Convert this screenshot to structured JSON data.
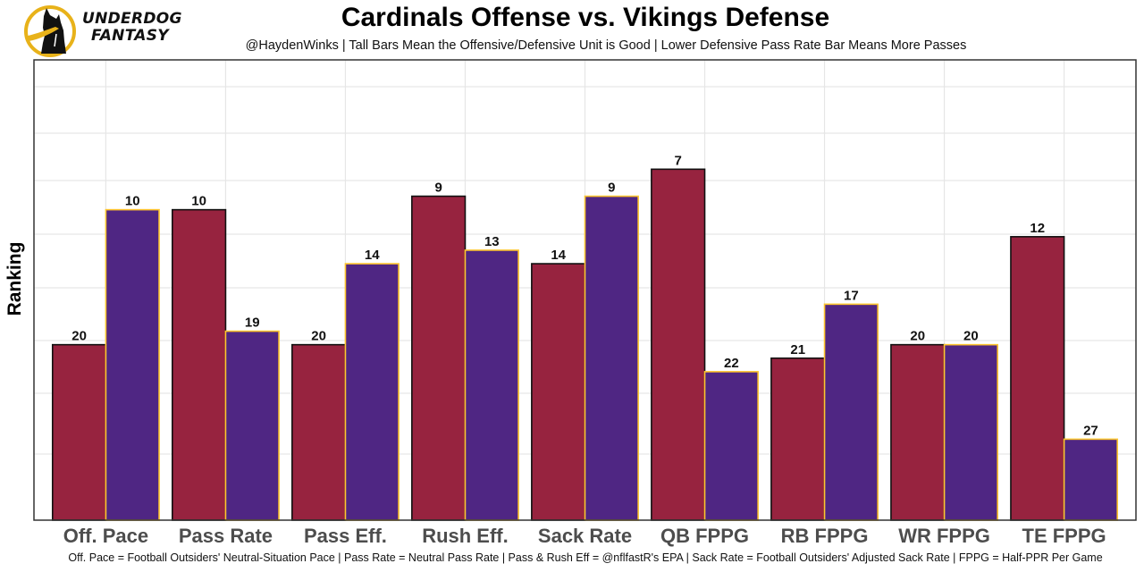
{
  "logo": {
    "line1": "UNDERDOG",
    "line2": "FANTASY",
    "icon": "underdog-dog-logo-icon"
  },
  "header": {
    "title": "Cardinals Offense vs. Vikings Defense",
    "subtitle": "@HaydenWinks | Tall Bars Mean the Offensive/Defensive Unit is Good | Lower Defensive Pass Rate Bar Means More Passes"
  },
  "footer": {
    "caption": "Off. Pace = Football Outsiders' Neutral-Situation Pace | Pass Rate = Neutral Pass Rate | Pass & Rush Eff = @nflfastR's EPA | Sack Rate = Football Outsiders' Adjusted Sack Rate | FPPG = Half-PPR Per Game"
  },
  "chart_data": {
    "type": "bar",
    "title": "Cardinals Offense vs. Vikings Defense",
    "subtitle": "@HaydenWinks | Tall Bars Mean the Offensive/Defensive Unit is Good | Lower Defensive Pass Rate Bar Means More Passes",
    "xlabel": "",
    "ylabel": "Ranking",
    "categories": [
      "Off. Pace",
      "Pass Rate",
      "Pass Eff.",
      "Rush Eff.",
      "Sack Rate",
      "QB FPPG",
      "RB FPPG",
      "WR FPPG",
      "TE FPPG"
    ],
    "series": [
      {
        "name": "Cardinals Offense",
        "values": [
          20,
          10,
          20,
          9,
          14,
          7,
          21,
          20,
          12
        ],
        "fill": "#97233F",
        "stroke": "#111111"
      },
      {
        "name": "Vikings Defense",
        "values": [
          10,
          19,
          14,
          13,
          9,
          22,
          17,
          20,
          27
        ],
        "fill": "#4F2683",
        "stroke": "#FFC62F"
      }
    ],
    "bar_height_rule": "height proportional to (33 - rank); lower rank = taller bar",
    "rank_inversion_base": 33,
    "ylim_inverted_units": [
      0,
      34.1
    ],
    "y_tick_labels_shown": false,
    "grid": true,
    "legend": "none"
  }
}
